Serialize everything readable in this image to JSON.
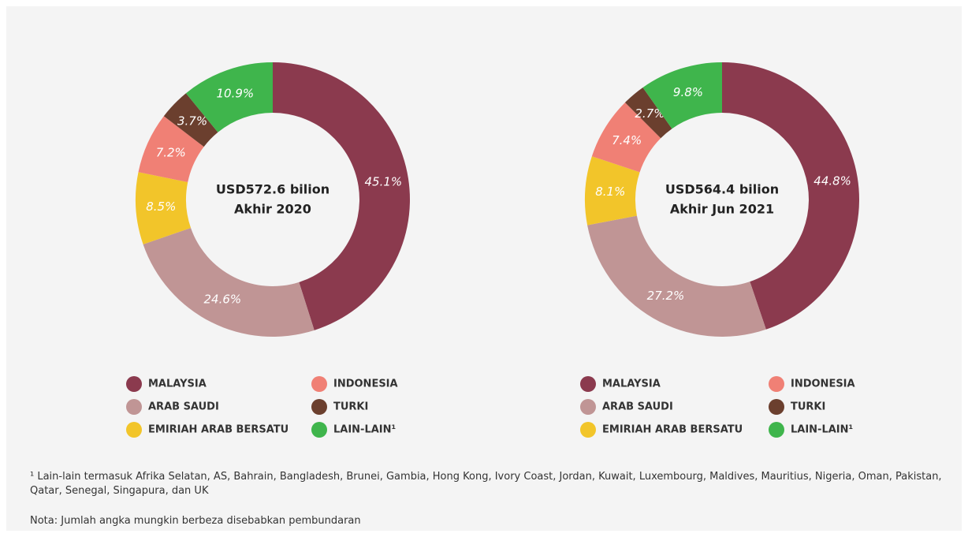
{
  "chart_data": [
    {
      "type": "pie",
      "center_text": [
        "USD572.6 bilion",
        "Akhir 2020"
      ],
      "categories": [
        "MALAYSIA",
        "ARAB SAUDI",
        "EMIRIAH ARAB BERSATU",
        "INDONESIA",
        "TURKI",
        "LAIN-LAIN¹"
      ],
      "values": [
        45.1,
        24.6,
        8.5,
        7.2,
        3.7,
        10.9
      ],
      "value_labels": [
        "45.1%",
        "24.6%",
        "8.5%",
        "7.2%",
        "3.7%",
        "10.9%"
      ],
      "colors": [
        "#8b3a4e",
        "#c09595",
        "#f2c52a",
        "#f08075",
        "#6b3f2e",
        "#3fb54c"
      ]
    },
    {
      "type": "pie",
      "center_text": [
        "USD564.4 bilion",
        "Akhir Jun 2021"
      ],
      "categories": [
        "MALAYSIA",
        "ARAB SAUDI",
        "EMIRIAH ARAB BERSATU",
        "INDONESIA",
        "TURKI",
        "LAIN-LAIN¹"
      ],
      "values": [
        44.8,
        27.2,
        8.1,
        7.4,
        2.7,
        9.8
      ],
      "value_labels": [
        "44.8%",
        "27.2%",
        "8.1%",
        "7.4%",
        "2.7%",
        "9.8%"
      ],
      "colors": [
        "#8b3a4e",
        "#c09595",
        "#f2c52a",
        "#f08075",
        "#6b3f2e",
        "#3fb54c"
      ]
    }
  ],
  "footnote": "¹ Lain-lain termasuk Afrika Selatan, AS, Bahrain, Bangladesh, Brunei, Gambia, Hong Kong, Ivory Coast, Jordan, Kuwait, Luxembourg, Maldives, Mauritius, Nigeria, Oman, Pakistan, Qatar, Senegal, Singapura, dan UK",
  "note": "Nota: Jumlah angka mungkin berbeza disebabkan pembundaran"
}
